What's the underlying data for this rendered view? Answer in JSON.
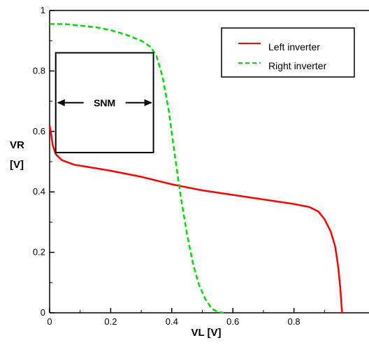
{
  "chart_data": {
    "type": "line",
    "xlabel": "VL [V]",
    "ylabel_line1": "VR",
    "ylabel_line2": "[V]",
    "xlim": [
      0,
      1
    ],
    "ylim": [
      0,
      1
    ],
    "x_ticks": [
      0,
      0.2,
      0.4,
      0.6,
      0.8
    ],
    "x_tick_labels": [
      "0",
      "0.2",
      "0.4",
      "0.6",
      "0.8"
    ],
    "y_ticks": [
      0,
      0.2,
      0.4,
      0.6,
      0.8,
      1
    ],
    "y_tick_labels": [
      "0",
      "0.2",
      "0.4",
      "0.6",
      "0.8",
      "1"
    ],
    "grid": false,
    "legend_position": "top-right",
    "series": [
      {
        "name": "Left inverter",
        "color": "#ff0000",
        "dash": "solid",
        "points": [
          [
            0,
            0.62
          ],
          [
            0.005,
            0.59
          ],
          [
            0.01,
            0.555
          ],
          [
            0.02,
            0.525
          ],
          [
            0.04,
            0.505
          ],
          [
            0.08,
            0.49
          ],
          [
            0.2,
            0.47
          ],
          [
            0.3,
            0.45
          ],
          [
            0.4,
            0.425
          ],
          [
            0.5,
            0.405
          ],
          [
            0.6,
            0.39
          ],
          [
            0.7,
            0.375
          ],
          [
            0.8,
            0.36
          ],
          [
            0.85,
            0.35
          ],
          [
            0.88,
            0.335
          ],
          [
            0.9,
            0.31
          ],
          [
            0.92,
            0.27
          ],
          [
            0.935,
            0.22
          ],
          [
            0.945,
            0.15
          ],
          [
            0.952,
            0.08
          ],
          [
            0.956,
            0.02
          ],
          [
            0.958,
            0
          ]
        ]
      },
      {
        "name": "Right inverter",
        "color": "#00dd00",
        "dash": "dashed",
        "points": [
          [
            0,
            0.955
          ],
          [
            0.05,
            0.955
          ],
          [
            0.1,
            0.95
          ],
          [
            0.15,
            0.945
          ],
          [
            0.2,
            0.935
          ],
          [
            0.25,
            0.92
          ],
          [
            0.3,
            0.9
          ],
          [
            0.33,
            0.88
          ],
          [
            0.35,
            0.85
          ],
          [
            0.37,
            0.78
          ],
          [
            0.39,
            0.67
          ],
          [
            0.41,
            0.52
          ],
          [
            0.43,
            0.38
          ],
          [
            0.45,
            0.26
          ],
          [
            0.47,
            0.16
          ],
          [
            0.49,
            0.09
          ],
          [
            0.51,
            0.045
          ],
          [
            0.53,
            0.015
          ],
          [
            0.55,
            0.003
          ],
          [
            0.57,
            0
          ]
        ]
      }
    ],
    "annotations": {
      "box": {
        "x0": 0.02,
        "x1": 0.34,
        "y0": 0.53,
        "y1": 0.86
      },
      "arrow_y": 0.695,
      "text": "SNM"
    }
  }
}
